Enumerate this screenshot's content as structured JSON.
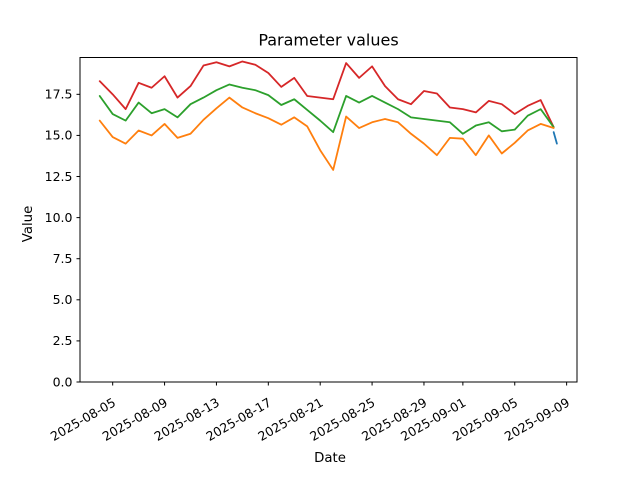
{
  "chart_data": {
    "type": "line",
    "title": "Parameter values",
    "xlabel": "Date",
    "ylabel": "Value",
    "grid": false,
    "legend": false,
    "background": "#ffffff",
    "axes_color": "#000000",
    "x_dates": [
      "2025-08-04",
      "2025-08-05",
      "2025-08-06",
      "2025-08-07",
      "2025-08-08",
      "2025-08-09",
      "2025-08-10",
      "2025-08-11",
      "2025-08-12",
      "2025-08-13",
      "2025-08-14",
      "2025-08-15",
      "2025-08-16",
      "2025-08-17",
      "2025-08-18",
      "2025-08-19",
      "2025-08-20",
      "2025-08-21",
      "2025-08-22",
      "2025-08-23",
      "2025-08-24",
      "2025-08-25",
      "2025-08-26",
      "2025-08-27",
      "2025-08-28",
      "2025-08-29",
      "2025-08-30",
      "2025-08-31",
      "2025-09-01",
      "2025-09-02",
      "2025-09-03",
      "2025-09-04",
      "2025-09-05",
      "2025-09-06",
      "2025-09-07",
      "2025-09-08"
    ],
    "series": [
      {
        "name": "red-series",
        "color": "#d62728",
        "values": [
          18.3,
          17.5,
          16.6,
          18.2,
          17.9,
          18.6,
          17.3,
          18.0,
          19.25,
          19.45,
          19.2,
          19.5,
          19.3,
          18.8,
          17.95,
          18.5,
          17.4,
          17.3,
          17.2,
          19.4,
          18.5,
          19.2,
          18.0,
          17.2,
          16.9,
          17.7,
          17.55,
          16.7,
          16.6,
          16.4,
          17.1,
          16.9,
          16.3,
          16.8,
          17.15,
          15.5
        ]
      },
      {
        "name": "green-series",
        "color": "#2ca02c",
        "values": [
          17.4,
          16.3,
          15.9,
          17.0,
          16.35,
          16.6,
          16.1,
          16.9,
          17.3,
          17.75,
          18.1,
          17.9,
          17.75,
          17.45,
          16.85,
          17.2,
          16.55,
          15.9,
          15.2,
          17.4,
          17.0,
          17.4,
          17.0,
          16.6,
          16.1,
          16.0,
          15.9,
          15.8,
          15.1,
          15.6,
          15.8,
          15.25,
          15.35,
          16.2,
          16.6,
          15.5
        ]
      },
      {
        "name": "orange-series",
        "color": "#ff7f0e",
        "values": [
          15.9,
          14.9,
          14.5,
          15.3,
          15.0,
          15.7,
          14.85,
          15.1,
          15.95,
          16.65,
          17.3,
          16.7,
          16.35,
          16.05,
          15.65,
          16.1,
          15.55,
          14.1,
          12.9,
          16.15,
          15.45,
          15.8,
          16.0,
          15.8,
          15.1,
          14.5,
          13.8,
          14.85,
          14.8,
          13.8,
          15.0,
          13.9,
          14.55,
          15.3,
          15.7,
          15.45
        ]
      }
    ],
    "extra_series": {
      "name": "blue-series",
      "color": "#1f77b4",
      "x_day_index": [
        35.0,
        35.25
      ],
      "values": [
        15.2,
        14.5
      ]
    },
    "x_tick_labels": [
      "2025-08-05",
      "2025-08-09",
      "2025-08-13",
      "2025-08-17",
      "2025-08-21",
      "2025-08-25",
      "2025-08-29",
      "2025-09-01",
      "2025-09-05",
      "2025-09-09"
    ],
    "x_tick_day_index": [
      1,
      5,
      9,
      13,
      17,
      21,
      25,
      28,
      32,
      36
    ],
    "y_ticks": [
      0.0,
      2.5,
      5.0,
      7.5,
      10.0,
      12.5,
      15.0,
      17.5
    ],
    "y_tick_labels": [
      "0.0",
      "2.5",
      "5.0",
      "7.5",
      "10.0",
      "12.5",
      "15.0",
      "17.5"
    ],
    "ylim": [
      0,
      19.74
    ],
    "xlim_day_index": [
      -1.52,
      36.8
    ],
    "x_tick_label_rotation_deg": 30
  }
}
